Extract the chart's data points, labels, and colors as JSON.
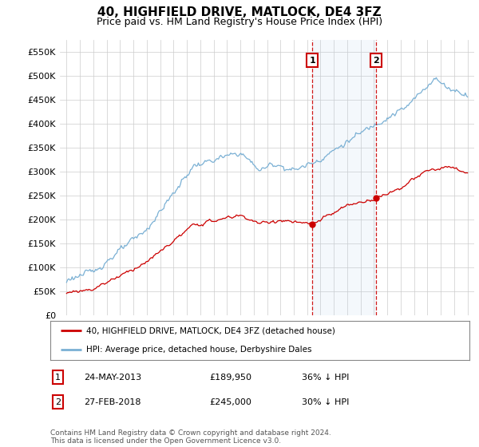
{
  "title": "40, HIGHFIELD DRIVE, MATLOCK, DE4 3FZ",
  "subtitle": "Price paid vs. HM Land Registry's House Price Index (HPI)",
  "ytick_values": [
    0,
    50000,
    100000,
    150000,
    200000,
    250000,
    300000,
    350000,
    400000,
    450000,
    500000,
    550000
  ],
  "ylim": [
    0,
    575000
  ],
  "xlim_start": 1994.5,
  "xlim_end": 2025.5,
  "hpi_color": "#7ab0d4",
  "hpi_fill_color": "#ddeeff",
  "price_color": "#cc0000",
  "vline_color": "#cc0000",
  "transaction1_date": 2013.39,
  "transaction1_price": 189950,
  "transaction2_date": 2018.16,
  "transaction2_price": 245000,
  "legend_line1": "40, HIGHFIELD DRIVE, MATLOCK, DE4 3FZ (detached house)",
  "legend_line2": "HPI: Average price, detached house, Derbyshire Dales",
  "table_row1": [
    "1",
    "24-MAY-2013",
    "£189,950",
    "36% ↓ HPI"
  ],
  "table_row2": [
    "2",
    "27-FEB-2018",
    "£245,000",
    "30% ↓ HPI"
  ],
  "footnote": "Contains HM Land Registry data © Crown copyright and database right 2024.\nThis data is licensed under the Open Government Licence v3.0.",
  "background_color": "#ffffff",
  "grid_color": "#cccccc",
  "title_fontsize": 11,
  "subtitle_fontsize": 9,
  "tick_fontsize": 8
}
